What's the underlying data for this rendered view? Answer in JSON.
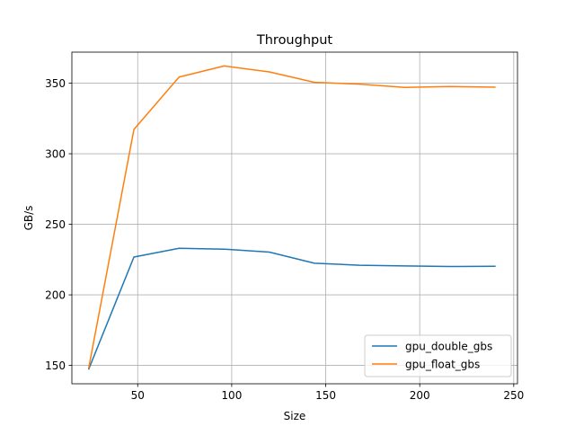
{
  "chart_data": {
    "type": "line",
    "title": "Throughput",
    "xlabel": "Size",
    "ylabel": "GB/s",
    "xlim": [
      15,
      252
    ],
    "ylim": [
      137,
      372
    ],
    "xticks": [
      50,
      100,
      150,
      200,
      250
    ],
    "yticks": [
      150,
      200,
      250,
      300,
      350
    ],
    "grid": true,
    "legend_position": "lower-right",
    "x": [
      24,
      48,
      72,
      96,
      120,
      144,
      168,
      192,
      216,
      240
    ],
    "series": [
      {
        "name": "gpu_double_gbs",
        "color": "#1f77b4",
        "values": [
          147.5,
          226.8,
          233.0,
          232.4,
          230.3,
          222.4,
          221.0,
          220.5,
          220.1,
          220.3
        ]
      },
      {
        "name": "gpu_float_gbs",
        "color": "#ff7f0e",
        "values": [
          148.5,
          317.2,
          354.3,
          362.2,
          358.0,
          350.6,
          349.3,
          347.0,
          347.6,
          347.2
        ]
      }
    ]
  }
}
